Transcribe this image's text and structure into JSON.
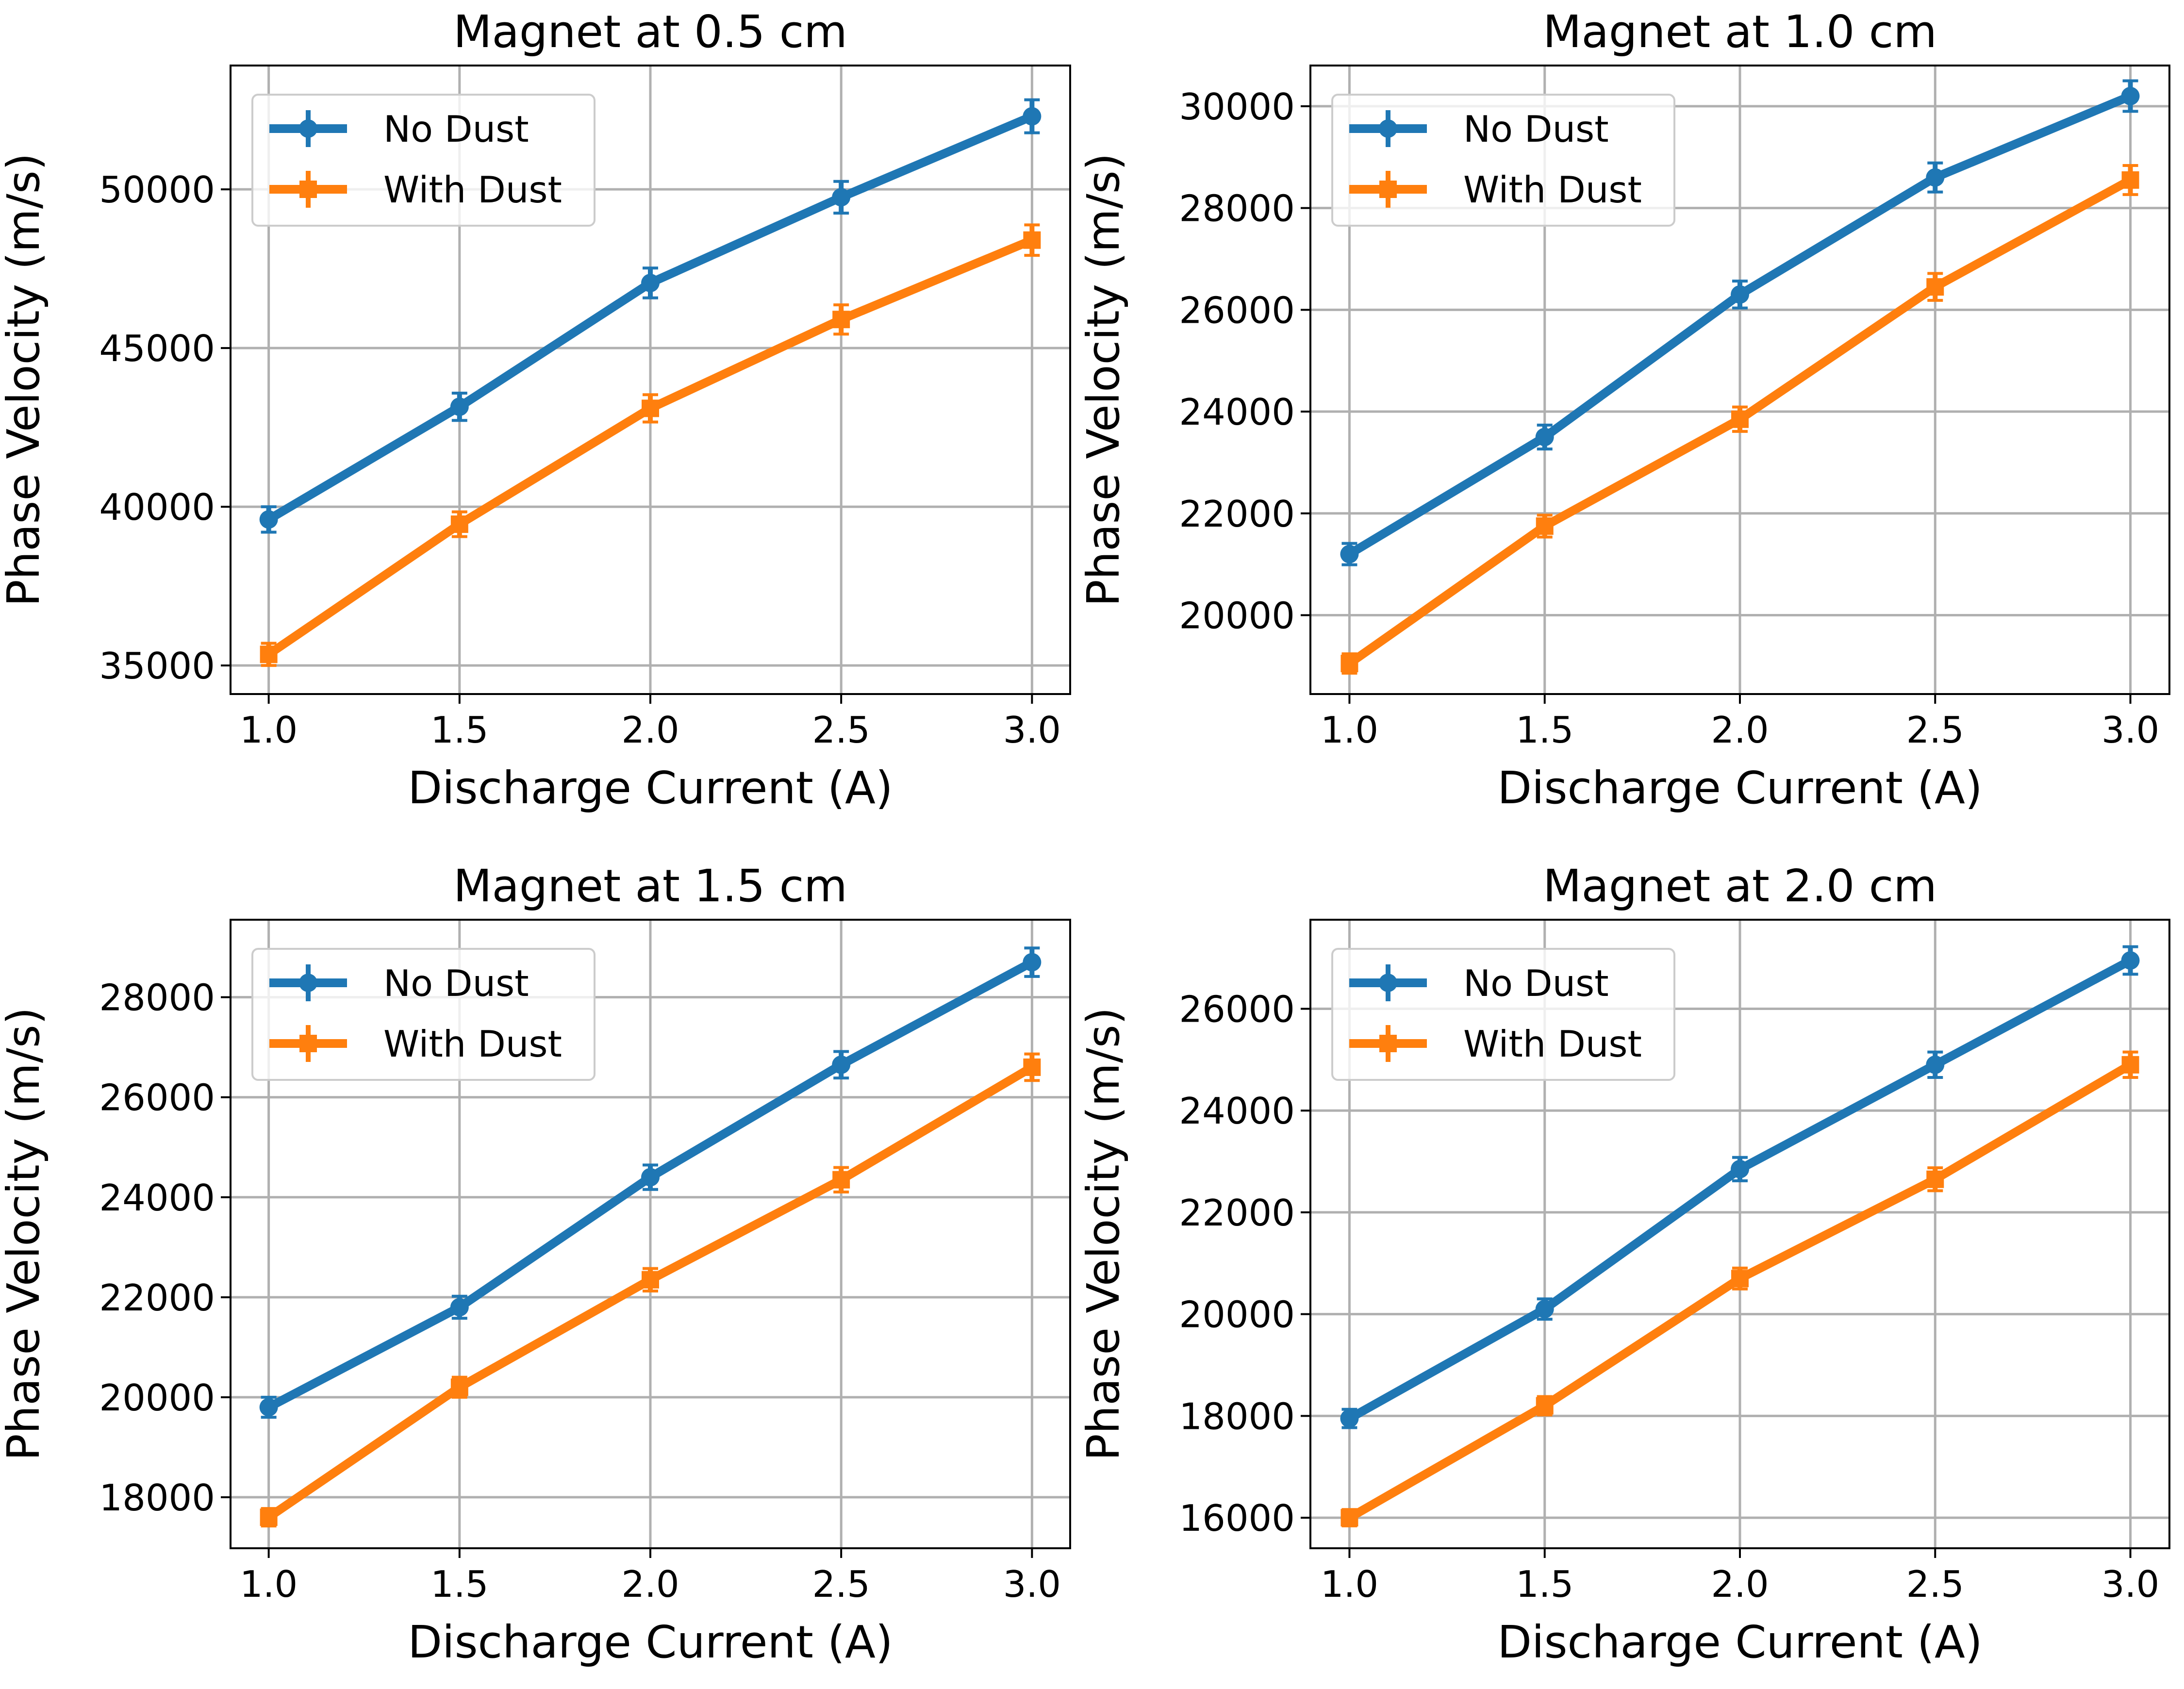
{
  "colors": {
    "no_dust": "#1f77b4",
    "with_dust": "#ff7f0e"
  },
  "chart_data": [
    {
      "type": "line",
      "title": "Magnet at 0.5 cm",
      "xlabel": "Discharge Current (A)",
      "ylabel": "Phase Velocity (m/s)",
      "x": [
        1.0,
        1.5,
        2.0,
        2.5,
        3.0
      ],
      "xticks": [
        "1.0",
        "1.5",
        "2.0",
        "2.5",
        "3.0"
      ],
      "xlim": [
        0.9,
        3.1
      ],
      "yticks": [
        35000,
        40000,
        45000,
        50000
      ],
      "ylim": [
        34100,
        53900
      ],
      "grid": true,
      "legend_position": "top-left",
      "series": [
        {
          "name": "No Dust",
          "values": [
            39600,
            43150,
            47050,
            49750,
            52300
          ],
          "errors": [
            400,
            430,
            470,
            500,
            520
          ]
        },
        {
          "name": "With Dust",
          "values": [
            35350,
            39450,
            43100,
            45900,
            48400
          ],
          "errors": [
            350,
            390,
            430,
            460,
            480
          ]
        }
      ]
    },
    {
      "type": "line",
      "title": "Magnet at 1.0 cm",
      "xlabel": "Discharge Current (A)",
      "ylabel": "Phase Velocity (m/s)",
      "x": [
        1.0,
        1.5,
        2.0,
        2.5,
        3.0
      ],
      "xticks": [
        "1.0",
        "1.5",
        "2.0",
        "2.5",
        "3.0"
      ],
      "xlim": [
        0.9,
        3.1
      ],
      "yticks": [
        20000,
        22000,
        24000,
        26000,
        28000,
        30000
      ],
      "ylim": [
        18450,
        30800
      ],
      "grid": true,
      "legend_position": "top-left",
      "series": [
        {
          "name": "No Dust",
          "values": [
            21200,
            23500,
            26300,
            28600,
            30200
          ],
          "errors": [
            210,
            235,
            265,
            285,
            300
          ]
        },
        {
          "name": "With Dust",
          "values": [
            19050,
            21750,
            23850,
            26450,
            28550
          ],
          "errors": [
            190,
            215,
            240,
            265,
            285
          ]
        }
      ]
    },
    {
      "type": "line",
      "title": "Magnet at 1.5 cm",
      "xlabel": "Discharge Current (A)",
      "ylabel": "Phase Velocity (m/s)",
      "x": [
        1.0,
        1.5,
        2.0,
        2.5,
        3.0
      ],
      "xticks": [
        "1.0",
        "1.5",
        "2.0",
        "2.5",
        "3.0"
      ],
      "xlim": [
        0.9,
        3.1
      ],
      "yticks": [
        18000,
        20000,
        22000,
        24000,
        26000,
        28000
      ],
      "ylim": [
        16980,
        29550
      ],
      "grid": true,
      "legend_position": "top-left",
      "series": [
        {
          "name": "No Dust",
          "values": [
            19800,
            21800,
            24400,
            26650,
            28700
          ],
          "errors": [
            200,
            220,
            245,
            265,
            285
          ]
        },
        {
          "name": "With Dust",
          "values": [
            17600,
            20200,
            22350,
            24350,
            26600
          ],
          "errors": [
            175,
            200,
            225,
            245,
            265
          ]
        }
      ]
    },
    {
      "type": "line",
      "title": "Magnet at 2.0 cm",
      "xlabel": "Discharge Current (A)",
      "ylabel": "Phase Velocity (m/s)",
      "x": [
        1.0,
        1.5,
        2.0,
        2.5,
        3.0
      ],
      "xticks": [
        "1.0",
        "1.5",
        "2.0",
        "2.5",
        "3.0"
      ],
      "xlim": [
        0.9,
        3.1
      ],
      "yticks": [
        16000,
        18000,
        20000,
        22000,
        24000,
        26000
      ],
      "ylim": [
        15400,
        27750
      ],
      "grid": true,
      "legend_position": "top-left",
      "series": [
        {
          "name": "No Dust",
          "values": [
            17950,
            20100,
            22850,
            24900,
            26950
          ],
          "errors": [
            180,
            200,
            230,
            250,
            270
          ]
        },
        {
          "name": "With Dust",
          "values": [
            16000,
            18200,
            20700,
            22650,
            24900
          ],
          "errors": [
            160,
            180,
            205,
            225,
            250
          ]
        }
      ]
    }
  ]
}
